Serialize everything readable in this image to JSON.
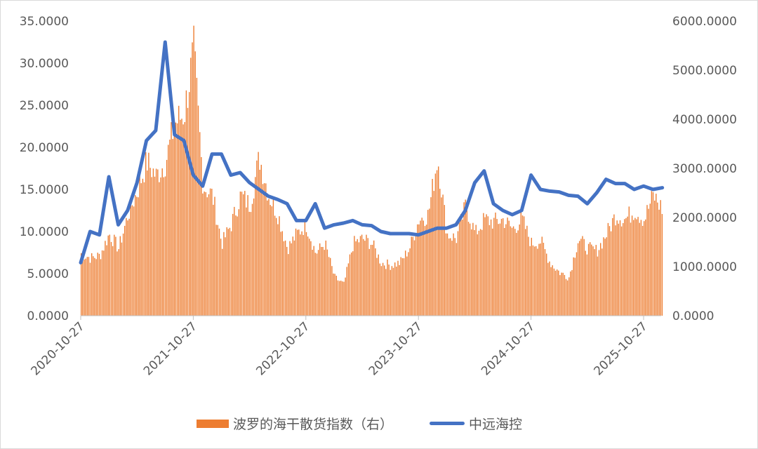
{
  "chart_data": {
    "type": "bar+line",
    "x_ticks": [
      "2020-10-27",
      "2021-10-27",
      "2022-10-27",
      "2023-10-27",
      "2024-10-27",
      "2025-10-27"
    ],
    "y_left": {
      "range": [
        0,
        35
      ],
      "ticks": [
        "0.0000",
        "5.0000",
        "10.0000",
        "15.0000",
        "20.0000",
        "25.0000",
        "30.0000",
        "35.0000"
      ]
    },
    "y_right": {
      "range": [
        0,
        6000
      ],
      "ticks": [
        "0.0000",
        "1000.0000",
        "2000.0000",
        "3000.0000",
        "4000.0000",
        "5000.0000",
        "6000.0000"
      ]
    },
    "grid": false,
    "legend_position": "bottom",
    "series": [
      {
        "name": "波罗的海干散货指数（右）",
        "axis": "right",
        "kind": "bar",
        "color": "#ED7D31",
        "x": [
          "2020-10",
          "2020-11",
          "2020-12",
          "2021-01",
          "2021-02",
          "2021-03",
          "2021-04",
          "2021-05",
          "2021-06",
          "2021-07",
          "2021-08",
          "2021-09",
          "2021-10",
          "2021-11",
          "2021-12",
          "2022-01",
          "2022-02",
          "2022-03",
          "2022-04",
          "2022-05",
          "2022-06",
          "2022-07",
          "2022-08",
          "2022-09",
          "2022-10",
          "2022-11",
          "2022-12",
          "2023-01",
          "2023-02",
          "2023-03",
          "2023-04",
          "2023-05",
          "2023-06",
          "2023-07",
          "2023-08",
          "2023-09",
          "2023-10",
          "2023-11",
          "2023-12",
          "2024-01",
          "2024-02",
          "2024-03",
          "2024-04",
          "2024-05",
          "2024-06",
          "2024-07",
          "2024-08",
          "2024-09",
          "2024-10",
          "2024-11",
          "2024-12",
          "2025-01",
          "2025-02",
          "2025-03",
          "2025-04",
          "2025-05",
          "2025-06",
          "2025-07",
          "2025-08",
          "2025-09",
          "2025-10",
          "2025-11",
          "2025-12"
        ],
        "values": [
          1300,
          1200,
          1250,
          1700,
          1400,
          2100,
          2600,
          3200,
          2900,
          3200,
          4000,
          4200,
          5500,
          2700,
          2500,
          1500,
          1900,
          2500,
          2300,
          3300,
          2500,
          2100,
          1400,
          1700,
          1900,
          1300,
          1500,
          800,
          650,
          1500,
          1600,
          1500,
          1100,
          1050,
          1100,
          1400,
          2000,
          2100,
          3300,
          1700,
          1600,
          2300,
          1700,
          2000,
          1950,
          2000,
          1800,
          2000,
          1500,
          1550,
          1100,
          900,
          800,
          1600,
          1400,
          1350,
          1700,
          2100,
          2000,
          2200,
          2000,
          2500,
          2200
        ]
      },
      {
        "name": "中远海控",
        "axis": "left",
        "kind": "line",
        "color": "#4472C4",
        "x": [
          "2020-10",
          "2020-11",
          "2020-12",
          "2021-01",
          "2021-02",
          "2021-03",
          "2021-04",
          "2021-05",
          "2021-06",
          "2021-07",
          "2021-08",
          "2021-09",
          "2021-10",
          "2021-11",
          "2021-12",
          "2022-01",
          "2022-02",
          "2022-03",
          "2022-04",
          "2022-05",
          "2022-06",
          "2022-07",
          "2022-08",
          "2022-09",
          "2022-10",
          "2022-11",
          "2022-12",
          "2023-01",
          "2023-02",
          "2023-03",
          "2023-04",
          "2023-05",
          "2023-06",
          "2023-07",
          "2023-08",
          "2023-09",
          "2023-10",
          "2023-11",
          "2023-12",
          "2024-01",
          "2024-02",
          "2024-03",
          "2024-04",
          "2024-05",
          "2024-06",
          "2024-07",
          "2024-08",
          "2024-09",
          "2024-10",
          "2024-11",
          "2024-12",
          "2025-01",
          "2025-02",
          "2025-03",
          "2025-04",
          "2025-05",
          "2025-06",
          "2025-07",
          "2025-08",
          "2025-09",
          "2025-10",
          "2025-11",
          "2025-12"
        ],
        "values": [
          6.3,
          10,
          9.6,
          16.5,
          10.8,
          12.5,
          15.8,
          20.8,
          22,
          32.5,
          21.5,
          20.8,
          16.7,
          15.4,
          19.2,
          19.2,
          16.7,
          17,
          15.8,
          15,
          14.2,
          13.8,
          13.3,
          11.3,
          11.3,
          13.3,
          10.4,
          10.8,
          11,
          11.3,
          10.8,
          10.7,
          10,
          9.75,
          9.75,
          9.75,
          9.6,
          10,
          10.4,
          10.4,
          10.8,
          12.5,
          15.8,
          17.2,
          13.3,
          12.5,
          12,
          12.5,
          16.7,
          15,
          14.8,
          14.7,
          14.3,
          14.2,
          13.3,
          14.6,
          16.2,
          15.7,
          15.7,
          15,
          15.4,
          15,
          15.2
        ]
      }
    ]
  }
}
